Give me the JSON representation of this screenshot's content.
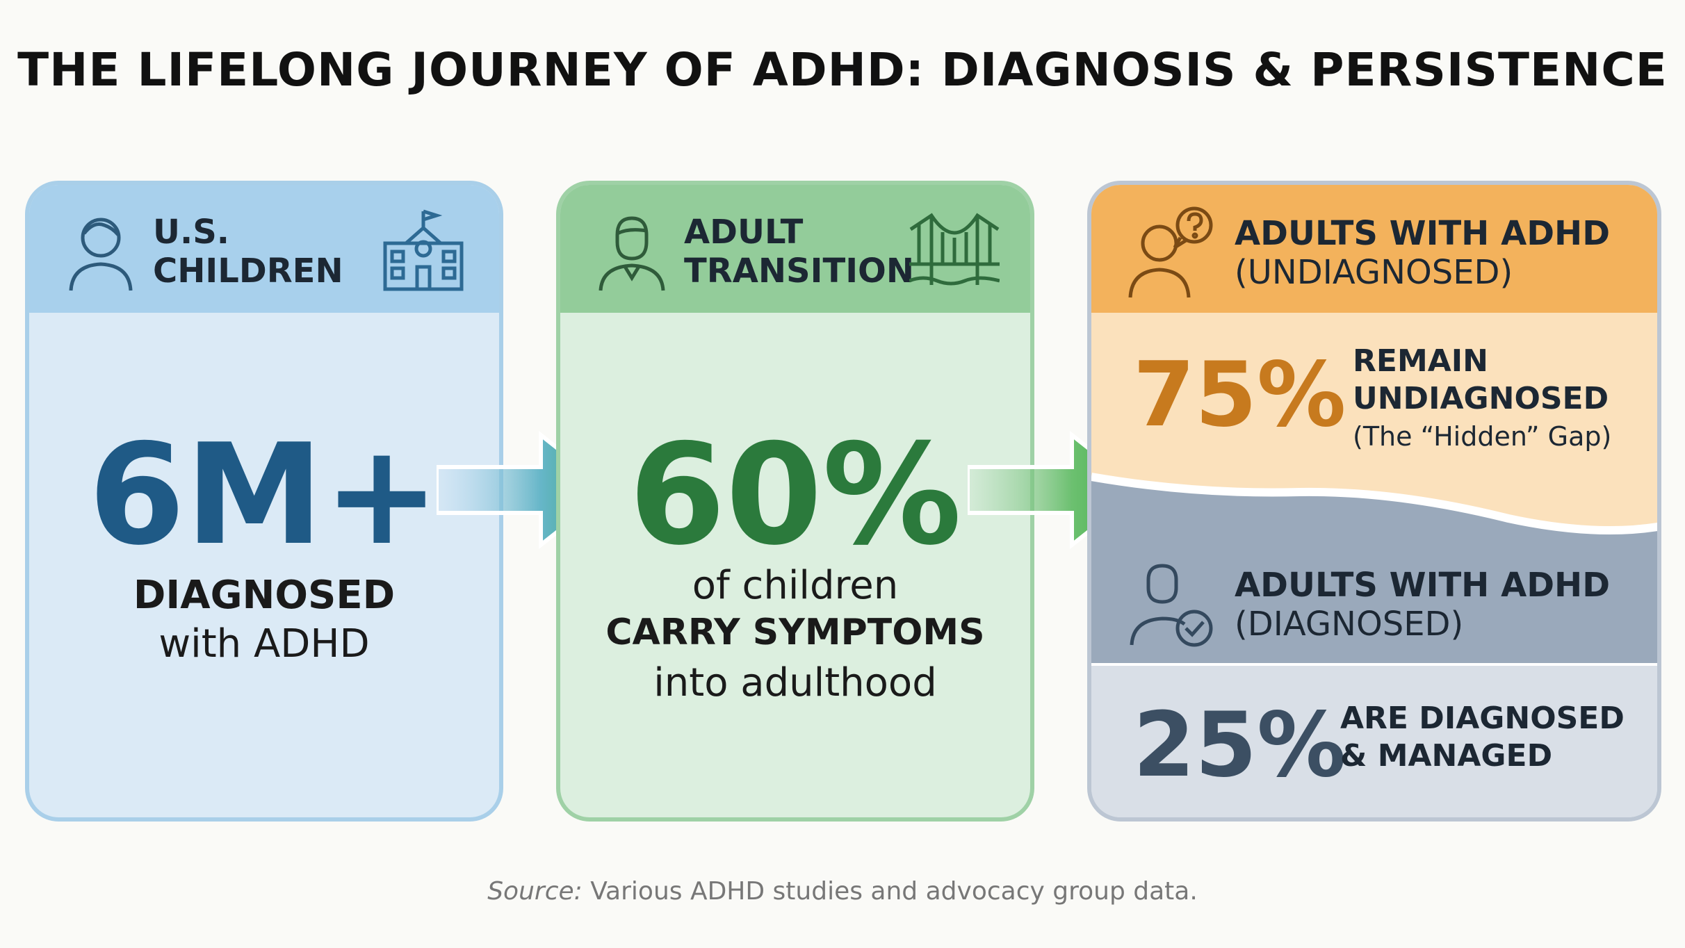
{
  "title": "THE LIFELONG JOURNEY OF ADHD: DIAGNOSIS & PERSISTENCE",
  "colors": {
    "blue": "#1f5a86",
    "green": "#2b7a3c",
    "orange": "#c77a1e",
    "slate": "#3c4f63"
  },
  "card1": {
    "label": "U.S.\nCHILDREN",
    "icon": "child-icon",
    "side_icon": "school-icon",
    "stat": "6M+",
    "line1": "DIAGNOSED",
    "line2": "with ADHD"
  },
  "card2": {
    "label": "ADULT\nTRANSITION",
    "icon": "adult-icon",
    "side_icon": "bridge-icon",
    "stat": "60%",
    "line1": "of children",
    "line2": "CARRY SYMPTOMS",
    "line3": "into adulthood"
  },
  "card3": {
    "top": {
      "head_bold": "ADULTS WITH ADHD",
      "head_sub": "(UNDIAGNOSED)",
      "icon": "question-person-icon",
      "stat": "75%",
      "line1": "REMAIN",
      "line2": "UNDIAGNOSED",
      "note": "(The “Hidden” Gap)"
    },
    "bottom": {
      "head_bold": "ADULTS WITH ADHD",
      "head_sub": "(DIAGNOSED)",
      "icon": "check-person-icon",
      "stat": "25%",
      "line1": "ARE DIAGNOSED",
      "line2": "& MANAGED"
    }
  },
  "source": {
    "label": "Source:",
    "text": " Various ADHD studies and advocacy group data."
  }
}
